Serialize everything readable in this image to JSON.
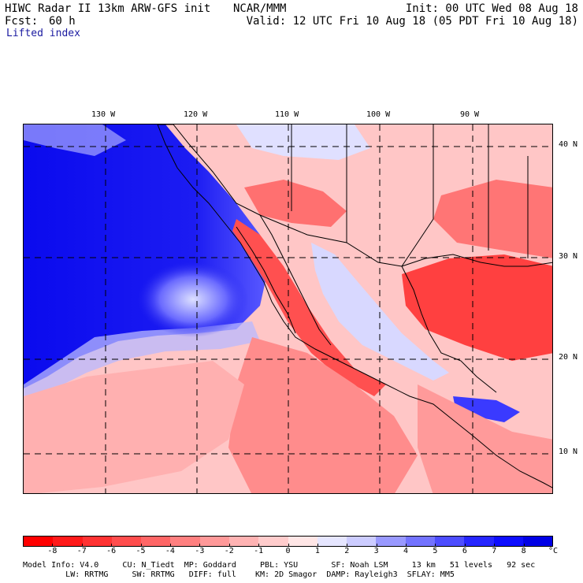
{
  "header": {
    "model_title": "HIWC Radar II 13km ARW-GFS init",
    "org": "NCAR/MMM",
    "init": "Init: 00 UTC Wed 08 Aug 18",
    "fcst_label": "Fcst:",
    "fcst_value": "60 h",
    "valid": "Valid: 12 UTC Fri 10 Aug 18 (05 PDT Fri 10 Aug 18)",
    "field_name": "Lifted index"
  },
  "map": {
    "lon_labels": [
      "130 W",
      "120 W",
      "110 W",
      "100 W",
      "90 W"
    ],
    "lat_labels": [
      "40 N",
      "30 N",
      "20 N",
      "10 N"
    ]
  },
  "colorbar": {
    "tick_labels": [
      "-8",
      "-7",
      "-6",
      "-5",
      "-4",
      "-3",
      "-2",
      "-1",
      "0",
      "1",
      "2",
      "3",
      "4",
      "5",
      "6",
      "7",
      "8"
    ],
    "unit": "°C",
    "colors": [
      "#ff0000",
      "#ff1a1a",
      "#ff3333",
      "#ff4d4d",
      "#ff6666",
      "#ff8080",
      "#ff9999",
      "#ffb3b3",
      "#ffcccc",
      "#ffe6e6",
      "#e6e6ff",
      "#ccccff",
      "#9999ff",
      "#7373ff",
      "#4d4dff",
      "#2626ff",
      "#0d0dff",
      "#0000e6"
    ]
  },
  "footer": {
    "line1": "Model Info: V4.0     CU: N_Tiedt  MP: Goddard     PBL: YSU       SF: Noah LSM     13 km   51 levels   92 sec",
    "line2": "         LW: RRTMG     SW: RRTMG   DIFF: full    KM: 2D Smagor  DAMP: Rayleigh3  SFLAY: MM5"
  }
}
